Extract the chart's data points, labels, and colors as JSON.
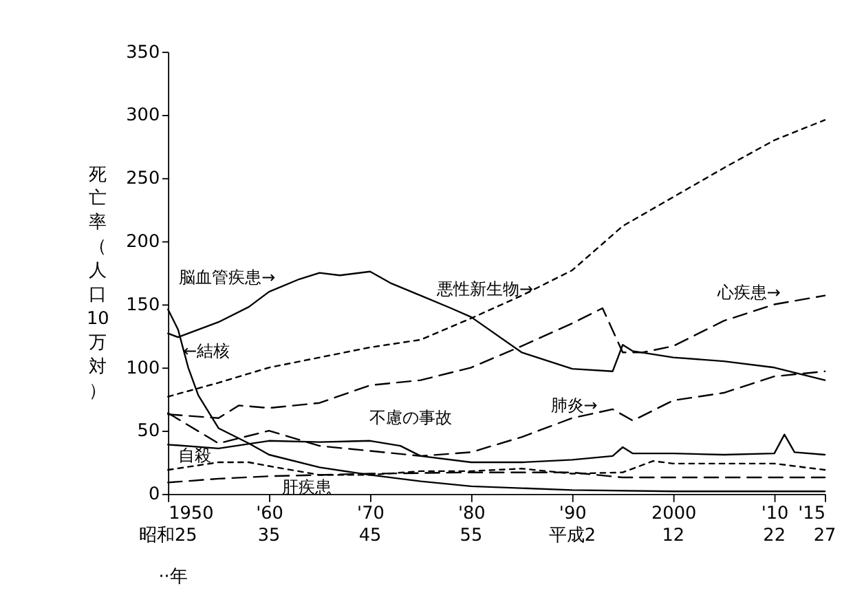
{
  "chart_data": {
    "type": "line",
    "xlabel": "··年",
    "ylabel": "死亡率（人口10万対）",
    "xlim": [
      1950,
      2015
    ],
    "ylim": [
      0,
      350
    ],
    "xticks": [
      1950,
      {
        "value": 1960,
        "label": "'60"
      },
      {
        "value": 1970,
        "label": "'70"
      },
      {
        "value": 1980,
        "label": "'80"
      },
      {
        "value": 1990,
        "label": "'90"
      },
      2000,
      {
        "value": 2010,
        "label": "'10"
      },
      {
        "value": 2015,
        "label": "'15"
      }
    ],
    "yticks": [
      0,
      50,
      100,
      150,
      200,
      250,
      300,
      350
    ],
    "grid": false,
    "marker": "none",
    "series": [
      {
        "color": "#000000",
        "line_style": "dotted",
        "x": [
          1950,
          1955,
          1960,
          1965,
          1970,
          1975,
          1980,
          1985,
          1990,
          1995,
          2000,
          2005,
          2010,
          2015
        ],
        "values": [
          77,
          88,
          100,
          108,
          116,
          122,
          139,
          157,
          177,
          212,
          235,
          258,
          280,
          296
        ]
      },
      {
        "color": "#000000",
        "line_style": "solid",
        "x": [
          1950,
          1951,
          1953,
          1955,
          1958,
          1960,
          1963,
          1965,
          1967,
          1970,
          1972,
          1975,
          1978,
          1980,
          1985,
          1990,
          1994,
          1995,
          1996,
          2000,
          2005,
          2010,
          2015
        ],
        "values": [
          127,
          124,
          130,
          136,
          148,
          160,
          170,
          175,
          173,
          176,
          167,
          157,
          147,
          140,
          112,
          99,
          97,
          118,
          113,
          108,
          105,
          100,
          90
        ]
      },
      {
        "color": "#000000",
        "line_style": "dashed",
        "x": [
          1950,
          1955,
          1957,
          1960,
          1965,
          1970,
          1975,
          1980,
          1985,
          1990,
          1993,
          1995,
          1997,
          2000,
          2005,
          2010,
          2015
        ],
        "values": [
          63,
          60,
          70,
          68,
          72,
          86,
          90,
          100,
          117,
          135,
          147,
          112,
          112,
          117,
          137,
          150,
          157
        ]
      },
      {
        "color": "#000000",
        "line_style": "solid",
        "x": [
          1950,
          1951,
          1952,
          1953,
          1955,
          1958,
          1960,
          1965,
          1970,
          1975,
          1980,
          1990,
          2000,
          2015
        ],
        "values": [
          146,
          130,
          100,
          78,
          52,
          40,
          31,
          21,
          15,
          10,
          6,
          3,
          2,
          2
        ]
      },
      {
        "color": "#000000",
        "line_style": "dashed",
        "x": [
          1950,
          1955,
          1960,
          1965,
          1970,
          1975,
          1980,
          1985,
          1990,
          1994,
          1996,
          2000,
          2005,
          2010,
          2015
        ],
        "values": [
          64,
          40,
          50,
          38,
          34,
          30,
          33,
          45,
          60,
          67,
          58,
          74,
          80,
          93,
          97
        ]
      },
      {
        "color": "#000000",
        "line_style": "solid",
        "x": [
          1950,
          1955,
          1960,
          1965,
          1970,
          1973,
          1975,
          1980,
          1985,
          1990,
          1994,
          1995,
          1996,
          2000,
          2005,
          2010,
          2011,
          2012,
          2015
        ],
        "values": [
          39,
          36,
          42,
          41,
          42,
          38,
          30,
          25,
          25,
          27,
          30,
          37,
          32,
          32,
          31,
          32,
          47,
          33,
          31
        ]
      },
      {
        "color": "#000000",
        "line_style": "dotted",
        "x": [
          1950,
          1955,
          1958,
          1960,
          1965,
          1970,
          1975,
          1980,
          1985,
          1990,
          1995,
          1998,
          2000,
          2005,
          2010,
          2015
        ],
        "values": [
          19,
          25,
          25,
          22,
          15,
          15,
          18,
          18,
          20,
          16,
          17,
          26,
          24,
          24,
          24,
          19
        ]
      },
      {
        "color": "#000000",
        "line_style": "dashed",
        "x": [
          1950,
          1955,
          1960,
          1970,
          1980,
          1990,
          1995,
          2000,
          2010,
          2015
        ],
        "values": [
          9,
          12,
          14,
          16,
          17,
          17,
          13,
          13,
          13,
          13
        ]
      }
    ],
    "annotations": [
      {
        "text": "脳血管疾患→",
        "x": 1961,
        "y": 163
      },
      {
        "text": "悪性新生物→",
        "x": 1986.5,
        "y": 160
      },
      {
        "text": "心疾患→",
        "x": 2011,
        "y": 151
      },
      {
        "text": "←結核",
        "x": 1951.5,
        "y": 113
      },
      {
        "text": "肺炎→",
        "x": 1992.5,
        "y": 62
      },
      {
        "text": "不慮の事故",
        "x": 1974,
        "y": 38
      },
      {
        "text": "自殺",
        "x": 1951,
        "y": 25
      },
      {
        "text": "肝疾患",
        "x": 1964,
        "y": 15
      },
      "昭和25",
      "35",
      "45",
      "55",
      "平成2",
      "12",
      "22",
      "27"
    ]
  }
}
